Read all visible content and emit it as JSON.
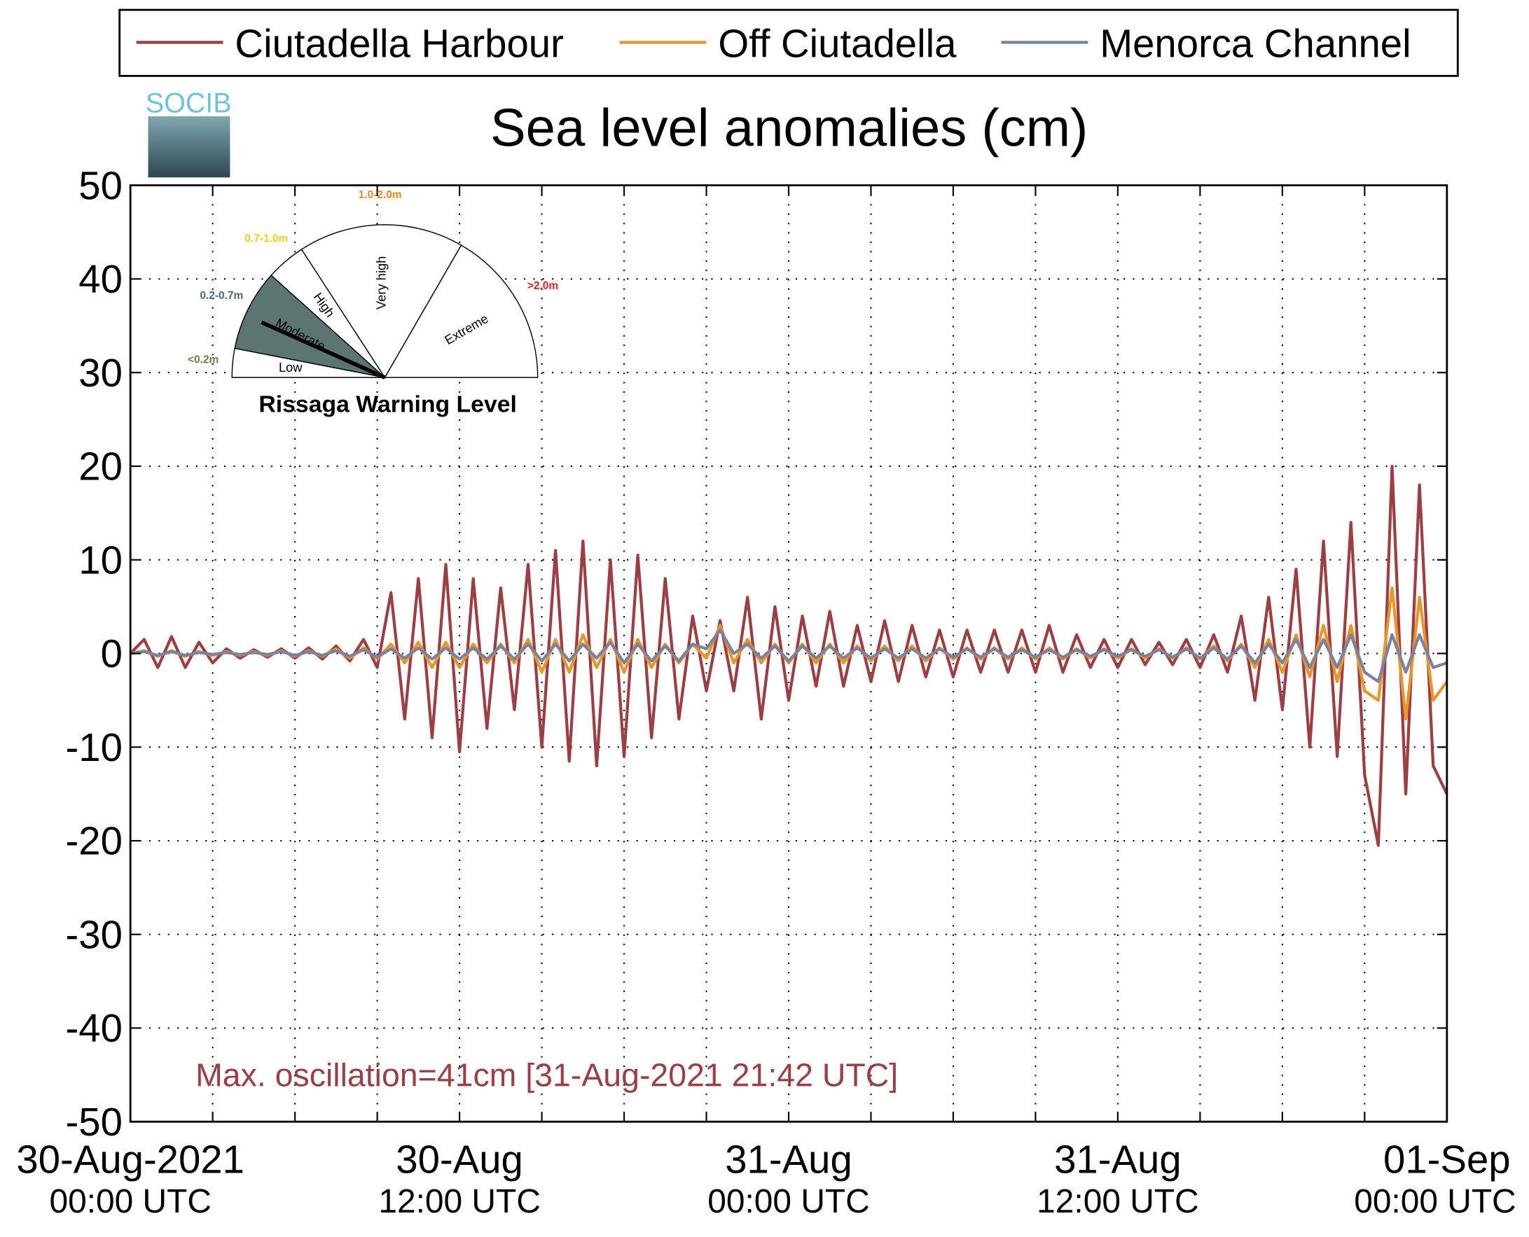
{
  "chart_data": {
    "type": "line",
    "title": "Sea level anomalies (cm)",
    "logo_text": "SOCIB",
    "annotation": "Max. oscillation=41cm [31-Aug-2021 21:42 UTC]",
    "annotation_color": "#9b3f44",
    "grid": true,
    "legend": "top",
    "xlim": [
      0,
      48
    ],
    "xticks": [
      {
        "value": 0,
        "label": [
          "30-Aug-2021",
          "00:00 UTC"
        ]
      },
      {
        "value": 3,
        "label": null
      },
      {
        "value": 6,
        "label": null
      },
      {
        "value": 9,
        "label": null
      },
      {
        "value": 12,
        "label": [
          "30-Aug",
          "12:00 UTC"
        ]
      },
      {
        "value": 15,
        "label": null
      },
      {
        "value": 18,
        "label": null
      },
      {
        "value": 21,
        "label": null
      },
      {
        "value": 24,
        "label": [
          "31-Aug",
          "00:00 UTC"
        ]
      },
      {
        "value": 27,
        "label": null
      },
      {
        "value": 30,
        "label": null
      },
      {
        "value": 33,
        "label": null
      },
      {
        "value": 36,
        "label": [
          "31-Aug",
          "12:00 UTC"
        ]
      },
      {
        "value": 39,
        "label": null
      },
      {
        "value": 42,
        "label": null
      },
      {
        "value": 45,
        "label": null
      },
      {
        "value": 48,
        "label": [
          "01-Sep",
          "00:00 UTC"
        ]
      }
    ],
    "ylim": [
      -50,
      50
    ],
    "yticks": [
      -50,
      -40,
      -30,
      -20,
      -10,
      0,
      10,
      20,
      30,
      40,
      50
    ],
    "x": [
      0,
      0.5,
      1,
      1.5,
      2,
      2.5,
      3,
      3.5,
      4,
      4.5,
      5,
      5.5,
      6,
      6.5,
      7,
      7.5,
      8,
      8.5,
      9,
      9.5,
      10,
      10.5,
      11,
      11.5,
      12,
      12.5,
      13,
      13.5,
      14,
      14.5,
      15,
      15.5,
      16,
      16.5,
      17,
      17.5,
      18,
      18.5,
      19,
      19.5,
      20,
      20.5,
      21,
      21.5,
      22,
      22.5,
      23,
      23.5,
      24,
      24.5,
      25,
      25.5,
      26,
      26.5,
      27,
      27.5,
      28,
      28.5,
      29,
      29.5,
      30,
      30.5,
      31,
      31.5,
      32,
      32.5,
      33,
      33.5,
      34,
      34.5,
      35,
      35.5,
      36,
      36.5,
      37,
      37.5,
      38,
      38.5,
      39,
      39.5,
      40,
      40.5,
      41,
      41.5,
      42,
      42.5,
      43,
      43.5,
      44,
      44.5,
      45,
      45.5,
      46,
      46.5,
      47,
      47.5,
      48
    ],
    "series": [
      {
        "name": "Ciutadella Harbour",
        "color": "#9b3f44",
        "values": [
          0,
          1.5,
          -1.5,
          1.8,
          -1.5,
          1.2,
          -1,
          0.5,
          -0.5,
          0.4,
          -0.4,
          0.5,
          -0.5,
          0.6,
          -0.6,
          0.8,
          -0.8,
          1.5,
          -1.5,
          6.5,
          -7,
          8,
          -9,
          9.5,
          -10.5,
          8,
          -8,
          7,
          -6,
          9.5,
          -10,
          11,
          -11.5,
          12,
          -12,
          10,
          -11,
          10.5,
          -9,
          8,
          -7,
          4,
          -4,
          3.5,
          -4,
          6,
          -7,
          5,
          -5,
          4,
          -3.5,
          4.5,
          -3.5,
          3,
          -3,
          3.5,
          -3,
          3,
          -2.5,
          2.5,
          -2.5,
          2.5,
          -2,
          2.5,
          -2,
          2.5,
          -2,
          3,
          -2,
          2,
          -1.5,
          1.5,
          -1.5,
          1.5,
          -1.2,
          1.2,
          -1.2,
          1.5,
          -1.5,
          2,
          -2,
          4,
          -5,
          6,
          -6,
          9,
          -10,
          12,
          -11,
          14,
          -13,
          -20.5,
          20,
          -15,
          18,
          -12,
          -15
        ]
      },
      {
        "name": "Off Ciutadella",
        "color": "#e8952a",
        "values": [
          0,
          0.3,
          -0.3,
          0.3,
          -0.3,
          0.2,
          -0.2,
          0.2,
          -0.2,
          0.2,
          -0.2,
          0.3,
          -0.3,
          0.3,
          -0.3,
          0.5,
          -0.5,
          0.6,
          -0.6,
          1,
          -1,
          1.2,
          -1.5,
          1.2,
          -1.5,
          1,
          -1,
          1,
          -1,
          1.5,
          -2,
          1.5,
          -2,
          2,
          -1.5,
          1.5,
          -2,
          1.5,
          -1.5,
          1,
          -1,
          1,
          -0.5,
          3,
          -1,
          1.5,
          -1,
          1,
          -1,
          1,
          -1,
          1,
          -1,
          0.8,
          -0.8,
          0.8,
          -0.8,
          0.8,
          -0.8,
          0.6,
          -0.6,
          0.6,
          -0.6,
          0.6,
          -0.6,
          0.6,
          -0.6,
          0.6,
          -0.6,
          0.5,
          -0.5,
          0.5,
          -0.5,
          0.5,
          -0.5,
          0.5,
          -0.5,
          0.6,
          -0.6,
          0.8,
          -0.8,
          1,
          -1.5,
          1.5,
          -2,
          2,
          -2.5,
          3,
          -3,
          3,
          -4,
          -5,
          7,
          -7,
          6,
          -5,
          -3
        ]
      },
      {
        "name": "Menorca Channel",
        "color": "#7a82a0",
        "values": [
          0,
          0.2,
          -0.2,
          0.2,
          -0.2,
          0.1,
          -0.1,
          0.1,
          -0.1,
          0.1,
          -0.1,
          0.2,
          -0.2,
          0.2,
          -0.2,
          0.3,
          -0.3,
          0.4,
          -0.4,
          0.5,
          -0.5,
          0.6,
          -0.6,
          0.6,
          -0.6,
          0.6,
          -0.6,
          0.8,
          -0.6,
          1,
          -0.8,
          1,
          -0.8,
          1,
          -0.5,
          1.2,
          -1,
          1,
          -0.8,
          0.8,
          -0.8,
          1,
          0.5,
          2.5,
          0,
          1,
          -0.5,
          0.8,
          -0.8,
          0.8,
          -0.5,
          0.8,
          -0.5,
          0.6,
          -0.5,
          0.5,
          -0.5,
          0.5,
          -0.5,
          0.5,
          -0.4,
          0.5,
          -0.4,
          0.5,
          -0.4,
          0.4,
          -0.4,
          0.4,
          -0.4,
          0.4,
          -0.3,
          0.4,
          -0.3,
          0.4,
          -0.3,
          0.4,
          -0.4,
          0.5,
          -0.5,
          0.6,
          -0.6,
          0.8,
          -1,
          1,
          -1,
          1.5,
          -1.5,
          1.5,
          -1.5,
          2,
          -2,
          -3,
          2,
          -2,
          2,
          -1.5,
          -1
        ]
      }
    ],
    "inset": {
      "title": "Rissaga Warning Level",
      "levels": [
        {
          "name": "Low",
          "range": "<0.2m",
          "range_color": "#6b7d4a"
        },
        {
          "name": "Moderate",
          "range": "0.2-0.7m",
          "range_color": "#4d6b6b"
        },
        {
          "name": "High",
          "range": "0.7-1.0m",
          "range_color": "#e6d21a"
        },
        {
          "name": "Very high",
          "range": "1.0-2.0m",
          "range_color": "#f08a1c"
        },
        {
          "name": "Extreme",
          "range": ">2.0m",
          "range_color": "#e0201a"
        }
      ]
    }
  }
}
